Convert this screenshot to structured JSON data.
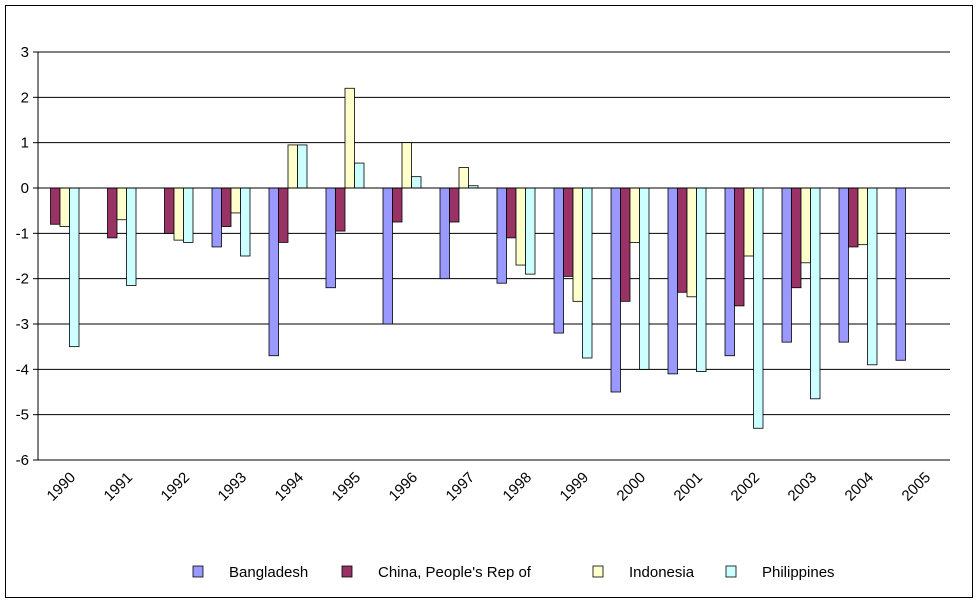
{
  "chart_data": {
    "type": "bar",
    "title": "",
    "xlabel": "",
    "ylabel": "",
    "ylim": [
      -6,
      3
    ],
    "yticks": [
      3,
      2,
      1,
      0,
      -1,
      -2,
      -3,
      -4,
      -5,
      -6
    ],
    "grid": true,
    "legend_position": "bottom",
    "categories": [
      "1990",
      "1991",
      "1992",
      "1993",
      "1994",
      "1995",
      "1996",
      "1997",
      "1998",
      "1999",
      "2000",
      "2001",
      "2002",
      "2003",
      "2004",
      "2005"
    ],
    "series": [
      {
        "name": "Bangladesh",
        "color": "#9999FF",
        "values": [
          null,
          null,
          null,
          -1.3,
          -3.7,
          -2.2,
          -3.0,
          -2.0,
          -2.1,
          -3.2,
          -4.5,
          -4.1,
          -3.7,
          -3.4,
          -3.4,
          -3.8
        ]
      },
      {
        "name": "China, People's Rep of",
        "color": "#993366",
        "values": [
          -0.8,
          -1.1,
          -1.0,
          -0.85,
          -1.2,
          -0.95,
          -0.75,
          -0.75,
          -1.1,
          -1.95,
          -2.5,
          -2.3,
          -2.6,
          -2.2,
          -1.3,
          null
        ]
      },
      {
        "name": "Indonesia",
        "color": "#FFFFCC",
        "values": [
          -0.85,
          -0.7,
          -1.15,
          -0.55,
          0.95,
          2.2,
          1.0,
          0.45,
          -1.7,
          -2.5,
          -1.2,
          -2.4,
          -1.5,
          -1.65,
          -1.25,
          null
        ]
      },
      {
        "name": "Philippines",
        "color": "#CCFFFF",
        "values": [
          -3.5,
          -2.15,
          -1.2,
          -1.5,
          0.95,
          0.55,
          0.25,
          0.05,
          -1.9,
          -3.75,
          -4.0,
          -4.05,
          -5.3,
          -4.65,
          -3.9,
          null
        ]
      }
    ]
  }
}
